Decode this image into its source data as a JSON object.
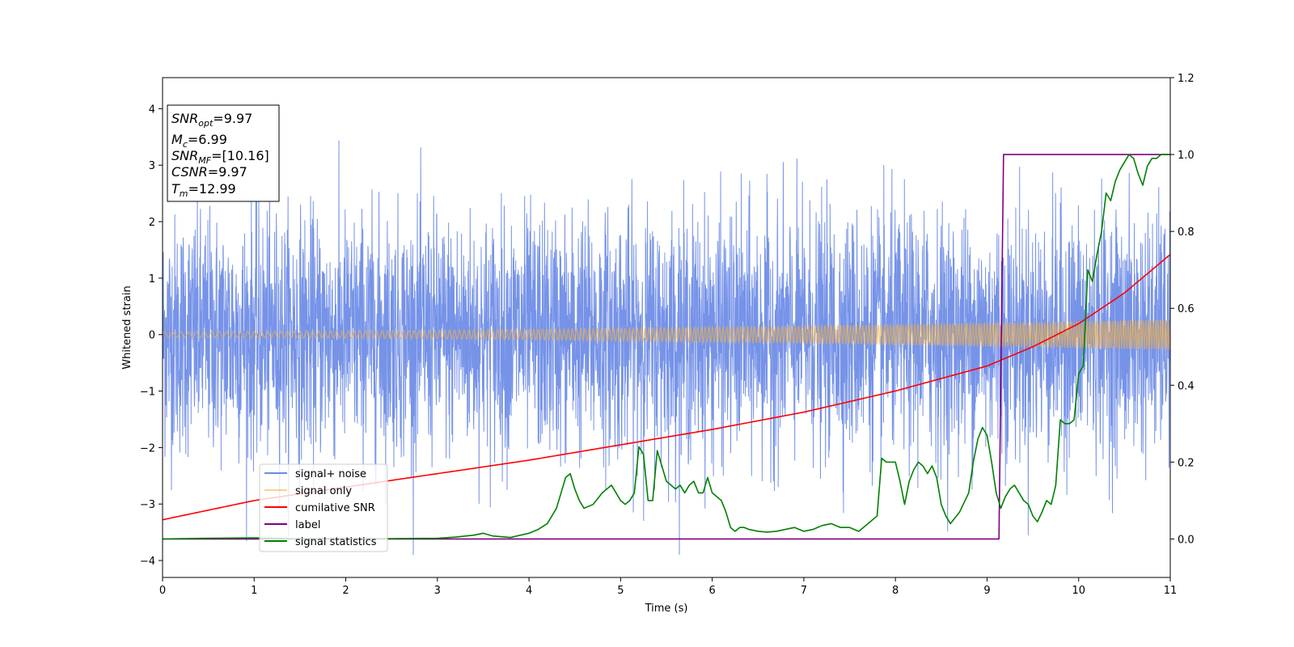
{
  "chart_data": {
    "type": "line",
    "xlabel": "Time (s)",
    "ylabel": "Whitened strain",
    "xlim": [
      0,
      11
    ],
    "ylim_left": [
      -4.3,
      4.55
    ],
    "ylim_right": [
      -0.1,
      1.2
    ],
    "x_ticks": [
      "0",
      "1",
      "2",
      "3",
      "4",
      "5",
      "6",
      "7",
      "8",
      "9",
      "10",
      "11"
    ],
    "y_ticks_left": [
      "−4",
      "−3",
      "−2",
      "−1",
      "0",
      "1",
      "2",
      "3",
      "4"
    ],
    "y_ticks_right": [
      "0.0",
      "0.2",
      "0.4",
      "0.6",
      "0.8",
      "1.0",
      "1.2"
    ],
    "legend_position": "lower-left",
    "colors": {
      "noise": "#6a8ae6",
      "signal": "#f5b041",
      "snr": "#ff0000",
      "label": "#800080",
      "stats": "#008000"
    },
    "info_box": {
      "snr_opt": "=9.97",
      "mc": "=6.99",
      "snr_mf": "=[10.16]",
      "csnr": "=9.97",
      "tm": "=12.99"
    },
    "series": [
      {
        "name": "signal+ noise",
        "axis": "left",
        "description_range": [
          -3.9,
          4.2
        ]
      },
      {
        "name": "signal only",
        "axis": "left",
        "amplitude_start": 0.05,
        "amplitude_end": 0.27
      },
      {
        "name": "cumilative SNR",
        "axis": "right",
        "x": [
          0,
          1,
          2,
          3,
          4,
          5,
          6,
          7,
          8,
          9,
          9.5,
          10,
          10.5,
          11
        ],
        "y": [
          0.05,
          0.1,
          0.135,
          0.17,
          0.205,
          0.245,
          0.285,
          0.33,
          0.385,
          0.45,
          0.5,
          0.56,
          0.64,
          0.74
        ]
      },
      {
        "name": "label",
        "axis": "right",
        "x": [
          0,
          9.13,
          9.18,
          11
        ],
        "y": [
          0.0,
          0.0,
          1.0,
          1.0
        ]
      },
      {
        "name": "signal statistics",
        "axis": "right",
        "x": [
          0,
          0.5,
          1,
          1.5,
          2,
          2.5,
          3,
          3.2,
          3.4,
          3.5,
          3.6,
          3.8,
          4,
          4.1,
          4.2,
          4.3,
          4.35,
          4.4,
          4.45,
          4.5,
          4.55,
          4.6,
          4.7,
          4.8,
          4.9,
          5.0,
          5.05,
          5.1,
          5.15,
          5.2,
          5.25,
          5.3,
          5.35,
          5.4,
          5.45,
          5.5,
          5.6,
          5.65,
          5.7,
          5.75,
          5.8,
          5.85,
          5.9,
          5.95,
          6.0,
          6.05,
          6.1,
          6.15,
          6.2,
          6.25,
          6.3,
          6.35,
          6.4,
          6.5,
          6.6,
          6.7,
          6.8,
          6.9,
          7.0,
          7.1,
          7.2,
          7.3,
          7.4,
          7.5,
          7.6,
          7.7,
          7.8,
          7.85,
          7.9,
          7.95,
          8.0,
          8.05,
          8.1,
          8.15,
          8.2,
          8.25,
          8.3,
          8.35,
          8.4,
          8.45,
          8.5,
          8.55,
          8.6,
          8.7,
          8.8,
          8.85,
          8.9,
          8.95,
          9.0,
          9.05,
          9.1,
          9.15,
          9.2,
          9.25,
          9.3,
          9.35,
          9.4,
          9.45,
          9.5,
          9.55,
          9.6,
          9.65,
          9.7,
          9.75,
          9.8,
          9.85,
          9.9,
          9.95,
          10.0,
          10.05,
          10.1,
          10.15,
          10.2,
          10.25,
          10.3,
          10.35,
          10.4,
          10.45,
          10.5,
          10.55,
          10.6,
          10.65,
          10.7,
          10.75,
          10.8,
          10.85,
          10.9,
          11.0
        ],
        "y": [
          0.0,
          0.002,
          0.003,
          0.001,
          0.002,
          0.001,
          0.002,
          0.005,
          0.01,
          0.015,
          0.008,
          0.004,
          0.015,
          0.025,
          0.04,
          0.08,
          0.12,
          0.16,
          0.17,
          0.13,
          0.1,
          0.08,
          0.09,
          0.12,
          0.14,
          0.1,
          0.09,
          0.1,
          0.12,
          0.24,
          0.22,
          0.1,
          0.1,
          0.23,
          0.19,
          0.15,
          0.13,
          0.14,
          0.12,
          0.14,
          0.15,
          0.12,
          0.12,
          0.16,
          0.12,
          0.11,
          0.1,
          0.07,
          0.03,
          0.02,
          0.03,
          0.03,
          0.025,
          0.02,
          0.018,
          0.02,
          0.025,
          0.03,
          0.02,
          0.025,
          0.035,
          0.04,
          0.03,
          0.03,
          0.02,
          0.04,
          0.06,
          0.21,
          0.2,
          0.2,
          0.2,
          0.15,
          0.09,
          0.15,
          0.18,
          0.2,
          0.19,
          0.17,
          0.19,
          0.16,
          0.09,
          0.06,
          0.04,
          0.07,
          0.12,
          0.2,
          0.26,
          0.29,
          0.27,
          0.2,
          0.12,
          0.08,
          0.11,
          0.13,
          0.14,
          0.12,
          0.1,
          0.09,
          0.06,
          0.045,
          0.07,
          0.1,
          0.09,
          0.14,
          0.31,
          0.3,
          0.3,
          0.31,
          0.43,
          0.45,
          0.7,
          0.67,
          0.74,
          0.8,
          0.9,
          0.88,
          0.93,
          0.96,
          0.98,
          1.0,
          0.99,
          0.95,
          0.92,
          0.97,
          0.99,
          0.99,
          1.0,
          1.0
        ]
      }
    ]
  }
}
